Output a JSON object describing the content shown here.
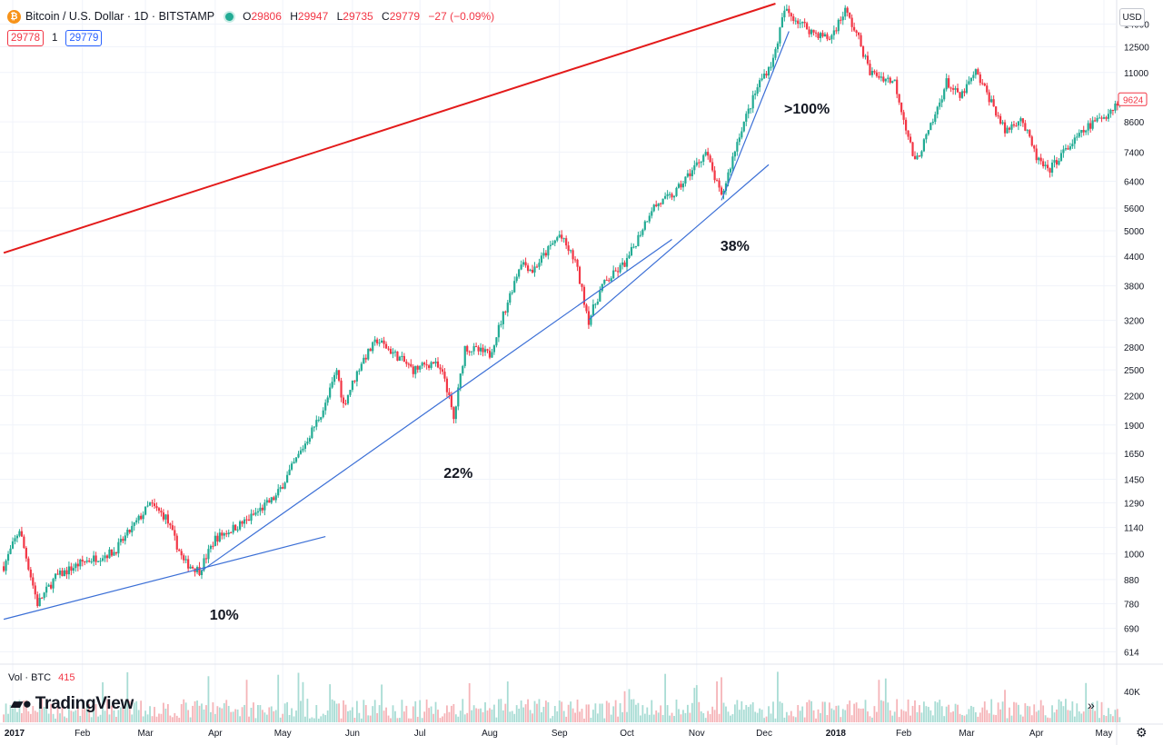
{
  "header": {
    "title": "Bitcoin / U.S. Dollar · 1D · BITSTAMP",
    "coin_icon": "bitcoin-icon",
    "ohlc": {
      "o_label": "O",
      "o": "29806",
      "h_label": "H",
      "h": "29947",
      "l_label": "L",
      "l": "29735",
      "c_label": "C",
      "c": "29779",
      "change": "−27 (−0.09%)"
    },
    "bid": "29778",
    "spread": "1",
    "ask": "29779"
  },
  "currency": "USD",
  "volume": {
    "label": "Vol · BTC",
    "value": "415",
    "axis_label": "40K"
  },
  "brand": "TradingView",
  "last_price": "9624",
  "colors": {
    "up": "#22ab94",
    "down": "#f23645",
    "trend": "#3b6fd6",
    "resistance": "#e31b1b"
  },
  "chart_data": {
    "type": "candlestick",
    "scale": "log",
    "ylim": [
      580,
      15500
    ],
    "y_ticks": [
      614,
      690,
      780,
      880,
      1000,
      1140,
      1290,
      1450,
      1650,
      1900,
      2200,
      2500,
      2800,
      3200,
      3800,
      4400,
      5000,
      5600,
      6400,
      7400,
      8600,
      9624,
      11000,
      12500,
      14000
    ],
    "x_tick_labels": [
      {
        "label": "2017",
        "date": "2017-01-01"
      },
      {
        "label": "Feb",
        "date": "2017-02-01"
      },
      {
        "label": "Mar",
        "date": "2017-03-01"
      },
      {
        "label": "Apr",
        "date": "2017-04-01"
      },
      {
        "label": "May",
        "date": "2017-05-01"
      },
      {
        "label": "Jun",
        "date": "2017-06-01"
      },
      {
        "label": "Jul",
        "date": "2017-07-01"
      },
      {
        "label": "Aug",
        "date": "2017-08-01"
      },
      {
        "label": "Sep",
        "date": "2017-09-01"
      },
      {
        "label": "Oct",
        "date": "2017-10-01"
      },
      {
        "label": "Nov",
        "date": "2017-11-01"
      },
      {
        "label": "Dec",
        "date": "2017-12-01"
      },
      {
        "label": "2018",
        "date": "2018-01-01"
      },
      {
        "label": "Feb",
        "date": "2018-02-01"
      },
      {
        "label": "Mar",
        "date": "2018-03-01"
      },
      {
        "label": "Apr",
        "date": "2018-04-01"
      },
      {
        "label": "May",
        "date": "2018-05-01"
      }
    ],
    "price_path": [
      [
        "2016-12-28",
        940
      ],
      [
        "2017-01-04",
        1130
      ],
      [
        "2017-01-12",
        780
      ],
      [
        "2017-01-20",
        890
      ],
      [
        "2017-02-01",
        960
      ],
      [
        "2017-02-15",
        1010
      ],
      [
        "2017-03-03",
        1280
      ],
      [
        "2017-03-10",
        1200
      ],
      [
        "2017-03-18",
        960
      ],
      [
        "2017-03-25",
        920
      ],
      [
        "2017-04-01",
        1080
      ],
      [
        "2017-04-15",
        1180
      ],
      [
        "2017-04-28",
        1330
      ],
      [
        "2017-05-10",
        1700
      ],
      [
        "2017-05-20",
        2100
      ],
      [
        "2017-05-25",
        2500
      ],
      [
        "2017-05-28",
        2100
      ],
      [
        "2017-06-05",
        2600
      ],
      [
        "2017-06-12",
        2900
      ],
      [
        "2017-06-20",
        2700
      ],
      [
        "2017-06-28",
        2500
      ],
      [
        "2017-07-07",
        2600
      ],
      [
        "2017-07-12",
        2400
      ],
      [
        "2017-07-16",
        1950
      ],
      [
        "2017-07-21",
        2800
      ],
      [
        "2017-08-01",
        2700
      ],
      [
        "2017-08-08",
        3400
      ],
      [
        "2017-08-15",
        4300
      ],
      [
        "2017-08-20",
        4100
      ],
      [
        "2017-09-01",
        4900
      ],
      [
        "2017-09-08",
        4300
      ],
      [
        "2017-09-14",
        3200
      ],
      [
        "2017-09-20",
        3800
      ],
      [
        "2017-10-01",
        4300
      ],
      [
        "2017-10-12",
        5600
      ],
      [
        "2017-10-22",
        6000
      ],
      [
        "2017-11-05",
        7400
      ],
      [
        "2017-11-12",
        5900
      ],
      [
        "2017-11-20",
        8100
      ],
      [
        "2017-11-29",
        10500
      ],
      [
        "2017-12-05",
        11700
      ],
      [
        "2017-12-10",
        15000
      ],
      [
        "2017-12-22",
        13500
      ],
      [
        "2017-12-30",
        13000
      ],
      [
        "2018-01-06",
        15000
      ],
      [
        "2018-01-12",
        13000
      ],
      [
        "2018-01-17",
        11000
      ],
      [
        "2018-01-28",
        10500
      ],
      [
        "2018-02-06",
        7000
      ],
      [
        "2018-02-14",
        8600
      ],
      [
        "2018-02-20",
        10500
      ],
      [
        "2018-02-26",
        9700
      ],
      [
        "2018-03-05",
        11000
      ],
      [
        "2018-03-12",
        9500
      ],
      [
        "2018-03-18",
        8200
      ],
      [
        "2018-03-25",
        8800
      ],
      [
        "2018-04-01",
        7200
      ],
      [
        "2018-04-06",
        6700
      ],
      [
        "2018-04-12",
        7300
      ],
      [
        "2018-04-24",
        8400
      ],
      [
        "2018-05-03",
        9000
      ],
      [
        "2018-05-08",
        9624
      ]
    ],
    "trendlines": [
      {
        "color": "blue",
        "from": [
          "2016-12-28",
          722
        ],
        "to": [
          "2017-05-20",
          1090
        ]
      },
      {
        "color": "blue",
        "from": [
          "2017-03-26",
          920
        ],
        "to": [
          "2017-10-21",
          4790
        ]
      },
      {
        "color": "blue",
        "from": [
          "2017-09-14",
          3210
        ],
        "to": [
          "2017-12-03",
          6950
        ]
      },
      {
        "color": "blue",
        "from": [
          "2017-11-12",
          5820
        ],
        "to": [
          "2017-12-12",
          13500
        ]
      },
      {
        "color": "red",
        "from": [
          "2016-12-28",
          4480
        ],
        "to": [
          "2017-12-06",
          15500
        ]
      }
    ],
    "annotations": [
      {
        "text": "10%",
        "date": "2017-04-05",
        "price": 720
      },
      {
        "text": "22%",
        "date": "2017-07-18",
        "price": 1460
      },
      {
        "text": "38%",
        "date": "2017-11-18",
        "price": 4530
      },
      {
        "text": ">100%",
        "date": "2017-12-20",
        "price": 8960
      }
    ]
  }
}
